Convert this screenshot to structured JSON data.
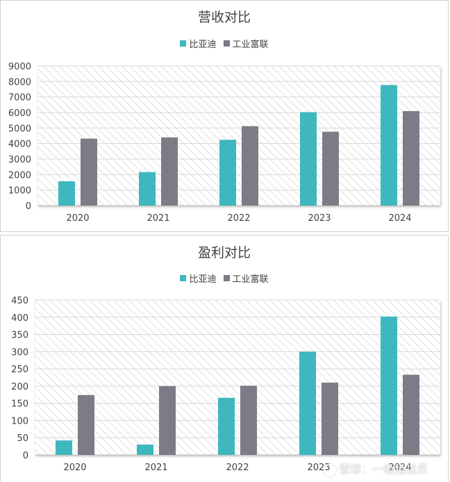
{
  "colors": {
    "byd": "#3eb8be",
    "foxconn": "#7b7c85"
  },
  "chart_data": [
    {
      "type": "bar",
      "title": "营收对比",
      "categories": [
        "2020",
        "2021",
        "2022",
        "2023",
        "2024"
      ],
      "series": [
        {
          "name": "比亚迪",
          "values": [
            1566,
            2161,
            4241,
            6023,
            7771
          ]
        },
        {
          "name": "工业富联",
          "values": [
            4318,
            4396,
            5118,
            4763,
            6092
          ]
        }
      ],
      "ylim": [
        0,
        9000
      ],
      "yticks": [
        "0",
        "1000",
        "2000",
        "3000",
        "4000",
        "5000",
        "6000",
        "7000",
        "8000",
        "9000"
      ],
      "legend": "top-center",
      "grid": true
    },
    {
      "type": "bar",
      "title": "盈利对比",
      "categories": [
        "2020",
        "2021",
        "2022",
        "2023",
        "2024"
      ],
      "series": [
        {
          "name": "比亚迪",
          "values": [
            42,
            30,
            166,
            300,
            402
          ]
        },
        {
          "name": "工业富联",
          "values": [
            174,
            200,
            201,
            210,
            233
          ]
        }
      ],
      "ylim": [
        0,
        450
      ],
      "yticks": [
        "0",
        "50",
        "100",
        "150",
        "200",
        "250",
        "300",
        "350",
        "400",
        "450"
      ],
      "legend": "top-center",
      "grid": true
    }
  ],
  "watermark": {
    "text": "雪球：一级猎战员",
    "icon": "snowball-logo-icon"
  }
}
